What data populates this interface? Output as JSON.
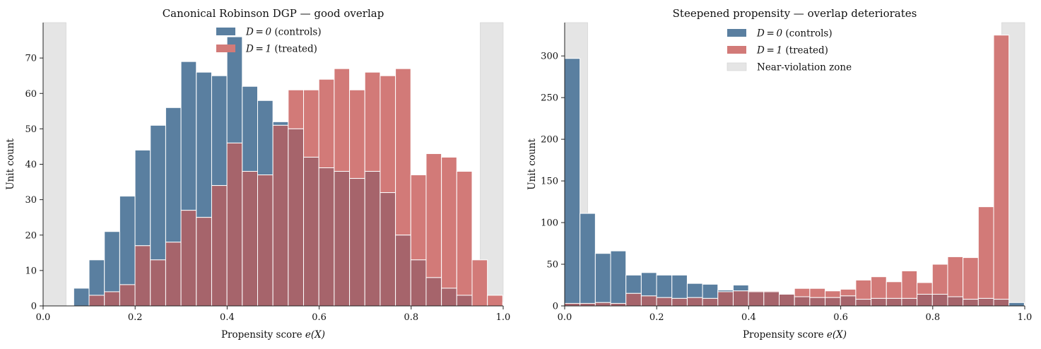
{
  "colors": {
    "controls": "#5a7fa0",
    "treated": "#d27a78",
    "overlap": "#a6646b",
    "zone": "#e5e5e5",
    "edge": "#ffffff",
    "axis": "#222222"
  },
  "chart_data": [
    {
      "type": "bar",
      "title": "Canonical Robinson DGP — good overlap",
      "xlabel_text": "Propensity score ",
      "xlabel_math": "e(X)",
      "ylabel": "Unit count",
      "xlim": [
        0,
        1
      ],
      "ylim": [
        0,
        80
      ],
      "xticks": [
        0.0,
        0.2,
        0.4,
        0.6,
        0.8,
        1.0
      ],
      "xtick_labels": [
        "0.0",
        "0.2",
        "0.4",
        "0.6",
        "0.8",
        "1.0"
      ],
      "yticks": [
        0,
        10,
        20,
        30,
        40,
        50,
        60,
        70
      ],
      "ytick_labels": [
        "0",
        "10",
        "20",
        "30",
        "40",
        "50",
        "60",
        "70"
      ],
      "zones": [
        [
          0,
          0.05
        ],
        [
          0.95,
          1.0
        ]
      ],
      "bin_start": 0.0,
      "bin_width": 0.0333,
      "legend_position": "upper-center",
      "legend": [
        {
          "key": "controls",
          "math": "D = 0",
          "text": " (controls)"
        },
        {
          "key": "treated",
          "math": "D = 1",
          "text": " (treated)"
        }
      ],
      "series": [
        {
          "key": "controls",
          "values": [
            0,
            0,
            5,
            13,
            21,
            31,
            44,
            51,
            56,
            69,
            66,
            65,
            76,
            62,
            58,
            52,
            50,
            42,
            39,
            38,
            36,
            38,
            32,
            20,
            13,
            8,
            5,
            3,
            0,
            0,
            1
          ]
        },
        {
          "key": "treated",
          "values": [
            0,
            0,
            0,
            3,
            4,
            6,
            17,
            13,
            18,
            27,
            25,
            34,
            46,
            38,
            37,
            51,
            61,
            61,
            64,
            67,
            61,
            66,
            65,
            67,
            37,
            43,
            42,
            38,
            13,
            3,
            0
          ]
        }
      ]
    },
    {
      "type": "bar",
      "title": "Steepened propensity — overlap deteriorates",
      "xlabel_text": "Propensity score ",
      "xlabel_math": "e(X)",
      "ylabel": "Unit count",
      "xlim": [
        0,
        1
      ],
      "ylim": [
        0,
        340
      ],
      "xticks": [
        0.0,
        0.2,
        0.4,
        0.6,
        0.8,
        1.0
      ],
      "xtick_labels": [
        "0.0",
        "0.2",
        "0.4",
        "0.6",
        "0.8",
        "1.0"
      ],
      "yticks": [
        0,
        50,
        100,
        150,
        200,
        250,
        300
      ],
      "ytick_labels": [
        "0",
        "50",
        "100",
        "150",
        "200",
        "250",
        "300"
      ],
      "zones": [
        [
          0,
          0.05
        ],
        [
          0.95,
          1.0
        ]
      ],
      "bin_start": 0.0,
      "bin_width": 0.0333,
      "legend_position": "upper-center",
      "legend": [
        {
          "key": "controls",
          "math": "D = 0",
          "text": " (controls)"
        },
        {
          "key": "treated",
          "math": "D = 1",
          "text": " (treated)"
        },
        {
          "key": "zone",
          "math": "",
          "text": "Near-violation zone"
        }
      ],
      "series": [
        {
          "key": "controls",
          "values": [
            297,
            111,
            63,
            66,
            37,
            40,
            37,
            37,
            27,
            26,
            19,
            25,
            17,
            17,
            14,
            11,
            10,
            10,
            12,
            8,
            9,
            9,
            9,
            14,
            14,
            11,
            8,
            9,
            8,
            4
          ]
        },
        {
          "key": "treated",
          "values": [
            3,
            3,
            4,
            3,
            15,
            12,
            10,
            9,
            10,
            9,
            17,
            18,
            18,
            18,
            14,
            21,
            21,
            18,
            20,
            31,
            35,
            29,
            42,
            28,
            50,
            59,
            58,
            119,
            325,
            0
          ]
        }
      ]
    }
  ]
}
